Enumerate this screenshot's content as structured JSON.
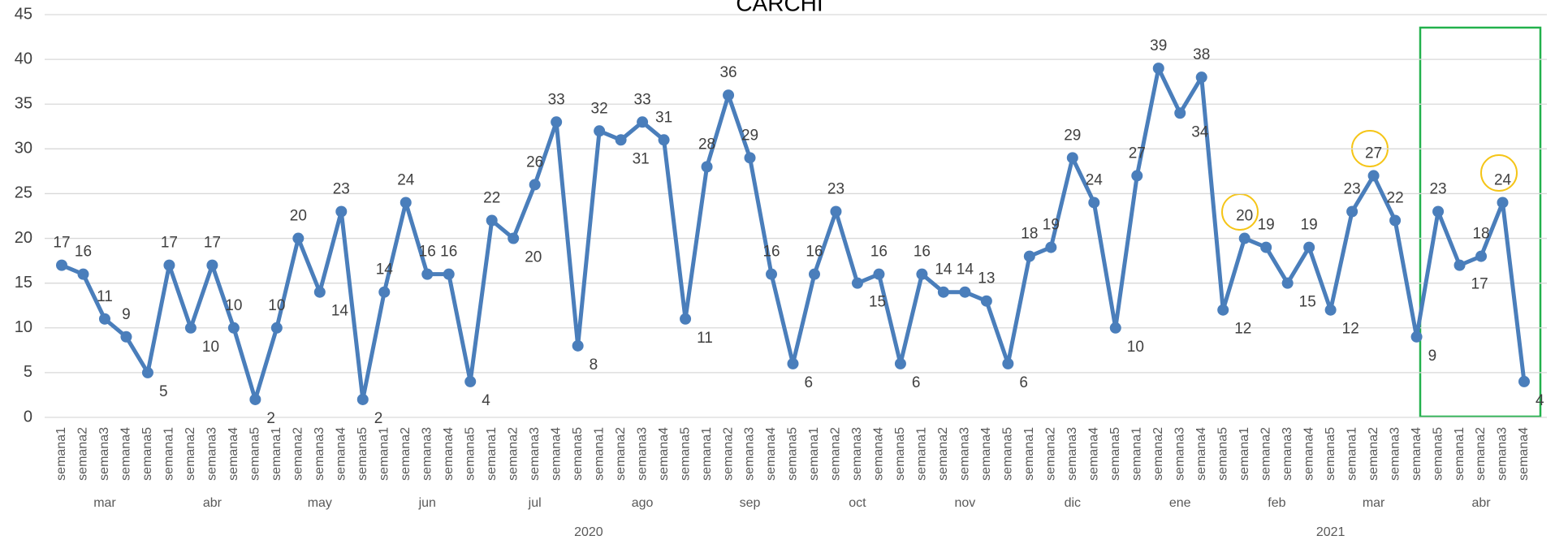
{
  "chart_data": {
    "type": "line",
    "title": "CARCHI",
    "color": "#4a7ebb",
    "years": [
      {
        "label": "2020",
        "months": [
          {
            "label": "mar",
            "weeks": [
              "semana1",
              "semana2",
              "semana3",
              "semana4",
              "semana5"
            ]
          },
          {
            "label": "abr",
            "weeks": [
              "semana1",
              "semana2",
              "semana3",
              "semana4",
              "semana5"
            ]
          },
          {
            "label": "may",
            "weeks": [
              "semana1",
              "semana2",
              "semana3",
              "semana4",
              "semana5"
            ]
          },
          {
            "label": "jun",
            "weeks": [
              "semana1",
              "semana2",
              "semana3",
              "semana4",
              "semana5"
            ]
          },
          {
            "label": "jul",
            "weeks": [
              "semana1",
              "semana2",
              "semana3",
              "semana4",
              "semana5"
            ]
          },
          {
            "label": "ago",
            "weeks": [
              "semana1",
              "semana2",
              "semana3",
              "semana4",
              "semana5"
            ]
          },
          {
            "label": "sep",
            "weeks": [
              "semana1",
              "semana2",
              "semana3",
              "semana4",
              "semana5"
            ]
          },
          {
            "label": "oct",
            "weeks": [
              "semana1",
              "semana2",
              "semana3",
              "semana4",
              "semana5"
            ]
          },
          {
            "label": "nov",
            "weeks": [
              "semana1",
              "semana2",
              "semana3",
              "semana4",
              "semana5"
            ]
          },
          {
            "label": "dic",
            "weeks": [
              "semana1",
              "semana2",
              "semana3",
              "semana4",
              "semana5"
            ]
          }
        ]
      },
      {
        "label": "2021",
        "months": [
          {
            "label": "ene",
            "weeks": [
              "semana1",
              "semana2",
              "semana3",
              "semana4",
              "semana5"
            ]
          },
          {
            "label": "feb",
            "weeks": [
              "semana1",
              "semana2",
              "semana3",
              "semana4"
            ]
          },
          {
            "label": "mar",
            "weeks": [
              "semana5",
              "semana1",
              "semana2",
              "semana3",
              "semana4"
            ]
          },
          {
            "label": "abr",
            "weeks": [
              "semana5",
              "semana1",
              "semana2",
              "semana3",
              "semana4"
            ]
          }
        ]
      }
    ],
    "values": [
      17,
      16,
      11,
      9,
      5,
      17,
      10,
      17,
      10,
      2,
      10,
      20,
      14,
      23,
      2,
      14,
      24,
      16,
      16,
      4,
      22,
      20,
      26,
      33,
      8,
      32,
      31,
      33,
      31,
      11,
      28,
      36,
      29,
      16,
      6,
      16,
      23,
      15,
      16,
      6,
      16,
      14,
      14,
      13,
      6,
      18,
      19,
      29,
      24,
      10,
      27,
      39,
      34,
      38,
      12,
      20,
      19,
      15,
      19,
      12,
      23,
      27,
      22,
      9,
      23,
      17,
      18,
      24,
      4
    ],
    "ylim": [
      0,
      45
    ],
    "yticks": [
      0,
      5,
      10,
      15,
      20,
      25,
      30,
      35,
      40,
      45
    ],
    "grid": true
  }
}
